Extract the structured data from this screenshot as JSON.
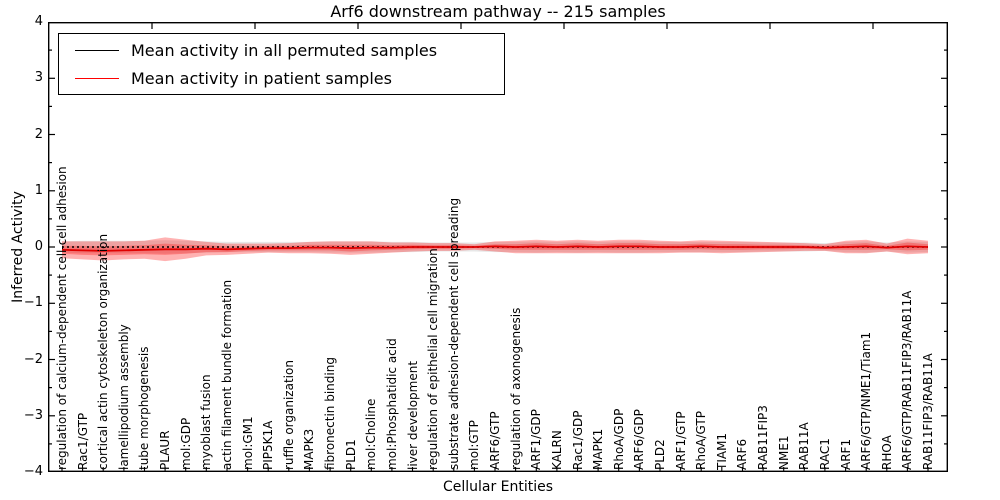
{
  "figure": {
    "title": "Arf6 downstream pathway -- 215 samples",
    "xlabel": "Cellular Entities",
    "ylabel": "Inferred Activity"
  },
  "legend": {
    "items": [
      {
        "label": "Mean activity in all permuted samples",
        "color": "#000000"
      },
      {
        "label": "Mean activity in patient samples",
        "color": "#ff0000"
      }
    ]
  },
  "chart_data": {
    "type": "line",
    "subtype": "mean-lines-with-spread-bands",
    "title": "Arf6 downstream pathway -- 215 samples",
    "xlabel": "Cellular Entities",
    "ylabel": "Inferred Activity",
    "ylim": [
      -4,
      4
    ],
    "yticks": [
      4,
      3,
      2,
      1,
      0,
      -1,
      -2,
      -3,
      -4
    ],
    "ytick_labels": [
      "4",
      "3",
      "2",
      "1",
      "0",
      "−1",
      "−2",
      "−3",
      "−4"
    ],
    "grid": false,
    "legend_position": "upper left",
    "categories": [
      "regulation of calcium-dependent cell-cell adhesion",
      "Rac1/GTP",
      "cortical actin cytoskeleton organization",
      "lamellipodium assembly",
      "tube morphogenesis",
      "PLAUR",
      "mol:GDP",
      "myoblast fusion",
      "actin filament bundle formation",
      "mol:GM1",
      "PIP5K1A",
      "ruffle organization",
      "MAPK3",
      "fibronectin binding",
      "PLD1",
      "mol:Choline",
      "mol:Phosphatidic acid",
      "liver development",
      "regulation of epithelial cell migration",
      "substrate adhesion-dependent cell spreading",
      "mol:GTP",
      "ARF6/GTP",
      "regulation of axonogenesis",
      "ARF1/GDP",
      "KALRN",
      "Rac1/GDP",
      "MAPK1",
      "RhoA/GDP",
      "ARF6/GDP",
      "PLD2",
      "ARF1/GTP",
      "RhoA/GTP",
      "TIAM1",
      "ARF6",
      "RAB11FIP3",
      "NME1",
      "RAB11A",
      "RAC1",
      "ARF1",
      "ARF6/GTP/NME1/Tiam1",
      "RHOA",
      "ARF6/GTP/RAB11FIP3/RAB11A",
      "RAB11FIP3/RAB11A"
    ],
    "series": [
      {
        "name": "Mean activity in all permuted samples",
        "color": "#000000",
        "style": "dashed",
        "values": [
          0,
          0,
          0,
          0,
          0,
          0,
          0,
          0,
          0,
          0,
          0,
          0,
          0,
          0,
          0,
          0,
          0,
          0,
          0,
          0,
          0,
          0,
          0,
          0,
          0,
          0,
          0,
          0,
          0,
          0,
          0,
          0,
          0,
          0,
          0,
          0,
          0,
          0,
          0,
          0,
          0,
          0,
          0
        ]
      },
      {
        "name": "Mean activity in patient samples",
        "color": "#e00000",
        "style": "solid",
        "values": [
          -0.05,
          -0.06,
          -0.07,
          -0.06,
          -0.05,
          -0.04,
          -0.04,
          -0.03,
          -0.04,
          -0.03,
          -0.02,
          -0.02,
          -0.01,
          -0.01,
          -0.02,
          -0.01,
          -0.01,
          0,
          0,
          0,
          0,
          0.01,
          0,
          0.01,
          0,
          0.01,
          0,
          0.01,
          0.01,
          0,
          0,
          0.01,
          0,
          0,
          0,
          0,
          0,
          -0.01,
          0,
          0.01,
          -0.01,
          0.01,
          0
        ]
      }
    ],
    "bands": [
      {
        "name": "permuted-samples-spread",
        "color": "#888888",
        "opacity": 0.2,
        "center_series": 0,
        "half_widths": [
          0.1,
          0.11,
          0.11,
          0.11,
          0.11,
          0.12,
          0.11,
          0.1,
          0.09,
          0.09,
          0.09,
          0.09,
          0.09,
          0.1,
          0.1,
          0.1,
          0.09,
          0.09,
          0.08,
          0.08,
          0.08,
          0.09,
          0.09,
          0.1,
          0.09,
          0.1,
          0.09,
          0.1,
          0.1,
          0.09,
          0.09,
          0.09,
          0.09,
          0.09,
          0.08,
          0.08,
          0.08,
          0.07,
          0.09,
          0.1,
          0.08,
          0.1,
          0.09
        ]
      },
      {
        "name": "patient-samples-spread-outer",
        "color": "#ff0000",
        "opacity": 0.3,
        "center_series": 1,
        "half_widths": [
          0.15,
          0.16,
          0.17,
          0.16,
          0.16,
          0.21,
          0.17,
          0.12,
          0.1,
          0.09,
          0.08,
          0.09,
          0.1,
          0.11,
          0.12,
          0.11,
          0.09,
          0.08,
          0.07,
          0.07,
          0.05,
          0.09,
          0.11,
          0.12,
          0.11,
          0.12,
          0.11,
          0.12,
          0.12,
          0.11,
          0.1,
          0.11,
          0.11,
          0.1,
          0.09,
          0.08,
          0.07,
          0.06,
          0.11,
          0.12,
          0.07,
          0.14,
          0.11
        ]
      },
      {
        "name": "patient-samples-spread-inner",
        "color": "#ff0000",
        "opacity": 0.28,
        "center_series": 1,
        "half_widths": [
          0.07,
          0.08,
          0.08,
          0.08,
          0.08,
          0.1,
          0.08,
          0.06,
          0.05,
          0.04,
          0.04,
          0.04,
          0.05,
          0.05,
          0.06,
          0.05,
          0.04,
          0.04,
          0.03,
          0.03,
          0.02,
          0.04,
          0.05,
          0.06,
          0.05,
          0.06,
          0.05,
          0.06,
          0.06,
          0.05,
          0.05,
          0.05,
          0.05,
          0.05,
          0.04,
          0.04,
          0.03,
          0.03,
          0.05,
          0.06,
          0.03,
          0.07,
          0.05
        ]
      }
    ]
  }
}
